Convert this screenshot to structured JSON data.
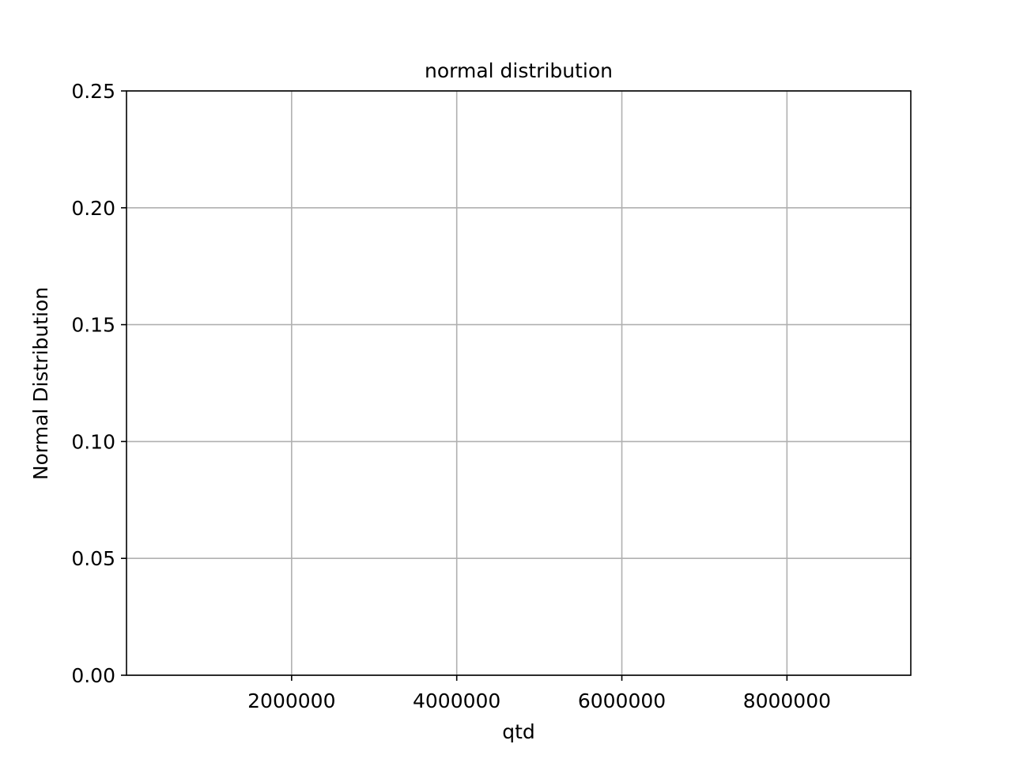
{
  "chart_data": {
    "type": "line",
    "title": "normal distribution",
    "xlabel": "qtd",
    "ylabel": "Normal Distribution",
    "xlim": [
      0,
      9500000
    ],
    "ylim": [
      0,
      0.25
    ],
    "x_ticks": [
      2000000,
      4000000,
      6000000,
      8000000
    ],
    "x_tick_labels": [
      "2000000",
      "4000000",
      "6000000",
      "8000000"
    ],
    "y_ticks": [
      0,
      0.05,
      0.1,
      0.15,
      0.2,
      0.25
    ],
    "y_tick_labels": [
      "0.00",
      "0.05",
      "0.10",
      "0.15",
      "0.20",
      "0.25"
    ],
    "grid": true,
    "series": []
  },
  "colors": {
    "grid": "#b0b0b0",
    "axes": "#000000",
    "background": "#ffffff"
  }
}
